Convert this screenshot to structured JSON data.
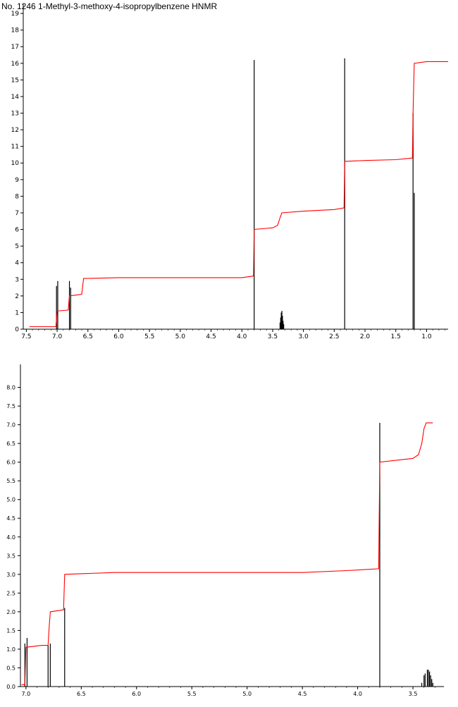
{
  "title": "No. 1246 1-Methyl-3-methoxy-4-isopropylbenzene HNMR",
  "colors": {
    "spectrum": "#000000",
    "integral": "#ff0000",
    "axis": "#000000"
  },
  "chart_data": [
    {
      "type": "line",
      "name": "full-spectrum",
      "xlim": [
        7.55,
        0.65
      ],
      "ylim": [
        0,
        19.3
      ],
      "x_ticks": [
        "7.5",
        "7.0",
        "6.5",
        "6.0",
        "5.5",
        "5.0",
        "4.5",
        "4.0",
        "3.5",
        "3.0",
        "2.5",
        "2.0",
        "1.5",
        "1.0"
      ],
      "x_tick_values": [
        7.5,
        7.0,
        6.5,
        6.0,
        5.5,
        5.0,
        4.5,
        4.0,
        3.5,
        3.0,
        2.5,
        2.0,
        1.5,
        1.0
      ],
      "y_ticks": [
        "0",
        "1",
        "2",
        "3",
        "4",
        "5",
        "6",
        "7",
        "8",
        "9",
        "10",
        "11",
        "12",
        "13",
        "14",
        "15",
        "16",
        "17",
        "18",
        "19"
      ],
      "y_tick_values": [
        0,
        1,
        2,
        3,
        4,
        5,
        6,
        7,
        8,
        9,
        10,
        11,
        12,
        13,
        14,
        15,
        16,
        17,
        18,
        19
      ],
      "peaks": [
        {
          "x": 7.01,
          "h": 2.6
        },
        {
          "x": 6.99,
          "h": 2.9
        },
        {
          "x": 6.8,
          "h": 2.9
        },
        {
          "x": 6.78,
          "h": 2.5
        },
        {
          "x": 3.8,
          "h": 16.2
        },
        {
          "x": 3.38,
          "h": 0.4
        },
        {
          "x": 3.37,
          "h": 0.7
        },
        {
          "x": 3.36,
          "h": 1.0
        },
        {
          "x": 3.35,
          "h": 1.1
        },
        {
          "x": 3.34,
          "h": 0.8
        },
        {
          "x": 3.33,
          "h": 0.5
        },
        {
          "x": 3.32,
          "h": 0.3
        },
        {
          "x": 2.33,
          "h": 16.3
        },
        {
          "x": 1.22,
          "h": 13.0
        },
        {
          "x": 1.2,
          "h": 8.2
        }
      ],
      "integral": [
        [
          7.45,
          0.15
        ],
        [
          7.02,
          0.15
        ],
        [
          7.0,
          1.05
        ],
        [
          6.98,
          1.1
        ],
        [
          6.82,
          1.15
        ],
        [
          6.8,
          2.0
        ],
        [
          6.6,
          2.1
        ],
        [
          6.57,
          3.05
        ],
        [
          6.0,
          3.1
        ],
        [
          5.5,
          3.1
        ],
        [
          5.0,
          3.1
        ],
        [
          4.5,
          3.1
        ],
        [
          4.0,
          3.1
        ],
        [
          3.81,
          3.2
        ],
        [
          3.8,
          6.0
        ],
        [
          3.5,
          6.1
        ],
        [
          3.42,
          6.25
        ],
        [
          3.38,
          6.7
        ],
        [
          3.35,
          7.0
        ],
        [
          3.0,
          7.1
        ],
        [
          2.5,
          7.2
        ],
        [
          2.34,
          7.3
        ],
        [
          2.33,
          10.1
        ],
        [
          2.0,
          10.15
        ],
        [
          1.5,
          10.2
        ],
        [
          1.23,
          10.3
        ],
        [
          1.22,
          13.0
        ],
        [
          1.2,
          16.0
        ],
        [
          1.0,
          16.1
        ],
        [
          0.65,
          16.1
        ]
      ]
    },
    {
      "type": "line",
      "name": "expanded-spectrum",
      "xlim": [
        7.05,
        3.22
      ],
      "ylim": [
        0,
        8.5
      ],
      "x_ticks": [
        "7.0",
        "6.5",
        "6.0",
        "5.5",
        "5.0",
        "4.5",
        "4.0",
        "3.5"
      ],
      "x_tick_values": [
        7.0,
        6.5,
        6.0,
        5.5,
        5.0,
        4.5,
        4.0,
        3.5
      ],
      "y_ticks": [
        "0.0",
        "0.5",
        "1.0",
        "1.5",
        "2.0",
        "2.5",
        "3.0",
        "3.5",
        "4.0",
        "4.5",
        "5.0",
        "5.5",
        "6.0",
        "6.5",
        "7.0",
        "7.5",
        "8.0"
      ],
      "y_tick_values": [
        0.0,
        0.5,
        1.0,
        1.5,
        2.0,
        2.5,
        3.0,
        3.5,
        4.0,
        4.5,
        5.0,
        5.5,
        6.0,
        6.5,
        7.0,
        7.5,
        8.0
      ],
      "peaks": [
        {
          "x": 7.01,
          "h": 1.15
        },
        {
          "x": 6.99,
          "h": 1.3
        },
        {
          "x": 6.8,
          "h": 1.1
        },
        {
          "x": 6.78,
          "h": 1.15
        },
        {
          "x": 6.65,
          "h": 2.1
        },
        {
          "x": 3.8,
          "h": 7.05
        },
        {
          "x": 3.42,
          "h": 0.1
        },
        {
          "x": 3.4,
          "h": 0.3
        },
        {
          "x": 3.39,
          "h": 0.35
        },
        {
          "x": 3.37,
          "h": 0.45
        },
        {
          "x": 3.36,
          "h": 0.45
        },
        {
          "x": 3.35,
          "h": 0.4
        },
        {
          "x": 3.34,
          "h": 0.3
        },
        {
          "x": 3.33,
          "h": 0.2
        },
        {
          "x": 3.32,
          "h": 0.1
        }
      ],
      "integral": [
        [
          7.04,
          0.05
        ],
        [
          7.01,
          0.05
        ],
        [
          7.0,
          1.05
        ],
        [
          6.86,
          1.1
        ],
        [
          6.8,
          1.1
        ],
        [
          6.79,
          1.6
        ],
        [
          6.78,
          2.0
        ],
        [
          6.66,
          2.05
        ],
        [
          6.65,
          3.0
        ],
        [
          6.2,
          3.05
        ],
        [
          5.5,
          3.05
        ],
        [
          5.0,
          3.05
        ],
        [
          4.5,
          3.05
        ],
        [
          4.1,
          3.1
        ],
        [
          3.81,
          3.15
        ],
        [
          3.8,
          6.0
        ],
        [
          3.5,
          6.1
        ],
        [
          3.45,
          6.2
        ],
        [
          3.42,
          6.5
        ],
        [
          3.4,
          6.9
        ],
        [
          3.38,
          7.05
        ],
        [
          3.32,
          7.05
        ]
      ]
    }
  ]
}
